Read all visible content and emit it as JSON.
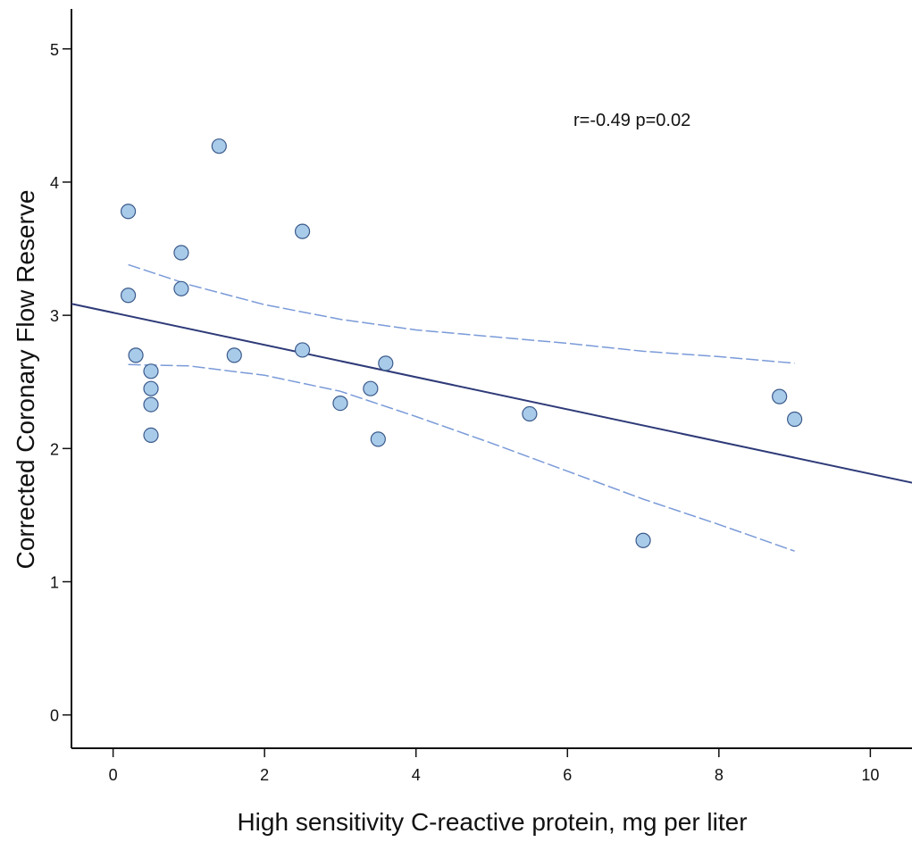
{
  "chart_data": {
    "type": "scatter",
    "title": "",
    "xlabel": "High sensitivity C-reactive protein, mg per liter",
    "ylabel": "Corrected Coronary Flow Reserve",
    "xlim": [
      -0.55,
      10.55
    ],
    "ylim": [
      -0.25,
      5.3
    ],
    "x_ticks": [
      0,
      2,
      4,
      6,
      8,
      10
    ],
    "y_ticks": [
      0,
      1,
      2,
      3,
      4,
      5
    ],
    "grid": false,
    "annotation": "r=-0.49 p=0.02",
    "points": [
      {
        "x": 0.2,
        "y": 3.78
      },
      {
        "x": 0.2,
        "y": 3.15
      },
      {
        "x": 0.3,
        "y": 2.7
      },
      {
        "x": 0.5,
        "y": 2.58
      },
      {
        "x": 0.5,
        "y": 2.45
      },
      {
        "x": 0.5,
        "y": 2.33
      },
      {
        "x": 0.5,
        "y": 2.1
      },
      {
        "x": 0.9,
        "y": 3.47
      },
      {
        "x": 0.9,
        "y": 3.2
      },
      {
        "x": 1.4,
        "y": 4.27
      },
      {
        "x": 1.6,
        "y": 2.7
      },
      {
        "x": 2.5,
        "y": 3.63
      },
      {
        "x": 2.5,
        "y": 2.74
      },
      {
        "x": 3.0,
        "y": 2.34
      },
      {
        "x": 3.4,
        "y": 2.45
      },
      {
        "x": 3.5,
        "y": 2.07
      },
      {
        "x": 3.6,
        "y": 2.64
      },
      {
        "x": 5.5,
        "y": 2.26
      },
      {
        "x": 7.0,
        "y": 1.31
      },
      {
        "x": 8.8,
        "y": 2.39
      },
      {
        "x": 9.0,
        "y": 2.22
      }
    ],
    "fit_line": {
      "intercept": 3.02,
      "slope": -0.121,
      "x_range": [
        -0.55,
        10.55
      ]
    },
    "ci_upper": [
      [
        0.2,
        3.38
      ],
      [
        1.0,
        3.23
      ],
      [
        2.0,
        3.08
      ],
      [
        3.0,
        2.97
      ],
      [
        4.0,
        2.89
      ],
      [
        5.0,
        2.84
      ],
      [
        6.0,
        2.79
      ],
      [
        7.0,
        2.73
      ],
      [
        8.0,
        2.69
      ],
      [
        9.0,
        2.64
      ]
    ],
    "ci_lower": [
      [
        0.2,
        2.63
      ],
      [
        1.0,
        2.62
      ],
      [
        2.0,
        2.55
      ],
      [
        3.0,
        2.43
      ],
      [
        4.0,
        2.24
      ],
      [
        5.0,
        2.04
      ],
      [
        6.0,
        1.83
      ],
      [
        7.0,
        1.62
      ],
      [
        8.0,
        1.43
      ],
      [
        9.0,
        1.23
      ]
    ],
    "colors": {
      "marker_fill": "#a9cbea",
      "marker_stroke": "#3a5a8a",
      "fit_line": "#2e3a78",
      "ci_line": "#7a9ad8",
      "axis": "#111111"
    }
  }
}
